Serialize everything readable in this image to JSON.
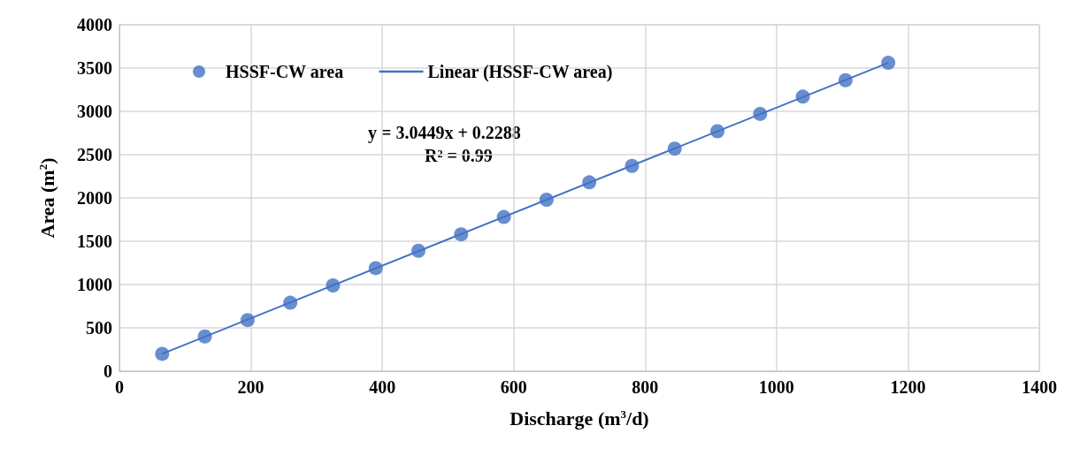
{
  "chart_data": {
    "type": "scatter",
    "xlabel": "Discharge (m$^{3}$/d)",
    "ylabel": "Area (m$^{2}$)",
    "xlim": [
      0,
      1400
    ],
    "xticks": [
      0,
      200,
      400,
      600,
      800,
      1000,
      1200,
      1400
    ],
    "ylim": [
      0,
      4000
    ],
    "yticks": [
      0,
      500,
      1000,
      1500,
      2000,
      2500,
      3000,
      3500,
      4000
    ],
    "grid": true,
    "legend": "top left",
    "marker": "circle",
    "annotations": [
      "y = 3.0449x + 0.2288",
      "R² = 0.99"
    ],
    "series": [
      {
        "name": "HSSF-CW area",
        "color": "#4472c4",
        "x": [
          65,
          130,
          195,
          260,
          325,
          390,
          455,
          520,
          585,
          650,
          715,
          780,
          845,
          910,
          975,
          1040,
          1105,
          1170
        ],
        "values": [
          200,
          400,
          590,
          790,
          990,
          1190,
          1390,
          1580,
          1780,
          1980,
          2180,
          2370,
          2570,
          2770,
          2970,
          3170,
          3360,
          3560
        ]
      },
      {
        "name": "Linear (HSSF-CW area)",
        "type": "line",
        "marker": "none",
        "color": "#4472c4",
        "x": [
          65,
          1170
        ],
        "values": [
          200,
          3560
        ]
      }
    ]
  }
}
